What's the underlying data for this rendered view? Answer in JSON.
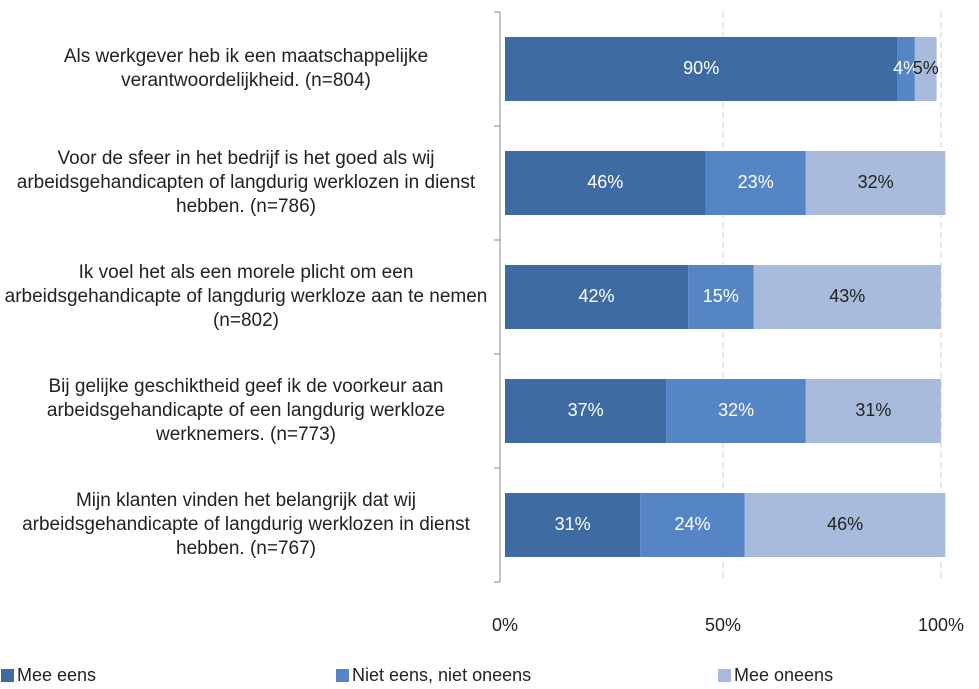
{
  "chart_data": {
    "type": "stacked-bar-horizontal",
    "categories": [
      "Als werkgever heb ik een maatschappelijke verantwoordelijkheid. (n=804)",
      "Voor de sfeer in het bedrijf is het goed als wij arbeidsgehandicapten of langdurig werklozen in dienst hebben. (n=786)",
      "Ik voel het als een morele plicht om een arbeidsgehandicapte of langdurig werkloze aan te nemen (n=802)",
      "Bij gelijke geschiktheid geef ik de voorkeur aan arbeidsgehandicapte of een langdurig werkloze werknemers. (n=773)",
      "Mijn klanten vinden het belangrijk dat wij arbeidsgehandicapte of langdurig werklozen in dienst hebben. (n=767)"
    ],
    "series": [
      {
        "name": "Mee eens",
        "color": "#3f6ba3",
        "values": [
          90,
          46,
          42,
          37,
          31
        ],
        "value_labels": [
          "90%",
          "46%",
          "42%",
          "37%",
          "31%"
        ]
      },
      {
        "name": "Niet eens, niet oneens",
        "color": "#5585c5",
        "values": [
          4,
          23,
          15,
          32,
          24
        ],
        "value_labels": [
          "4%",
          "23%",
          "15%",
          "32%",
          "24%"
        ]
      },
      {
        "name": "Mee oneens",
        "color": "#a9bbdc",
        "values": [
          5,
          32,
          43,
          31,
          46
        ],
        "value_labels": [
          "5%",
          "32%",
          "43%",
          "31%",
          "46%"
        ]
      }
    ],
    "xlim": [
      0,
      100
    ],
    "xticks": [
      {
        "value": 0,
        "label": "0%"
      },
      {
        "value": 50,
        "label": "50%"
      },
      {
        "value": 100,
        "label": "100%"
      }
    ],
    "grid": true,
    "legend": "bottom"
  }
}
